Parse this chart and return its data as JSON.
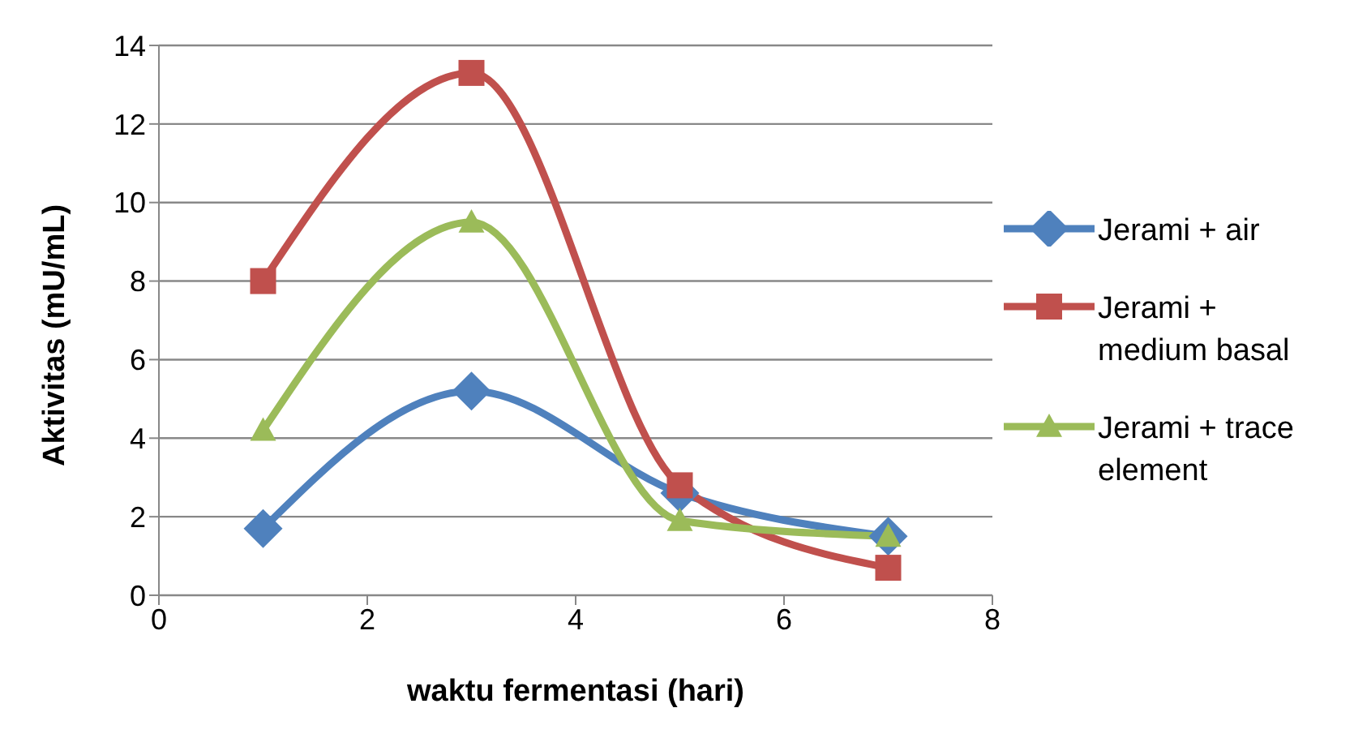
{
  "chart_data": {
    "type": "line",
    "xlabel": "waktu fermentasi (hari)",
    "ylabel": "Aktivitas (mU/mL)",
    "x": [
      1,
      3,
      5,
      7
    ],
    "series": [
      {
        "name": "Jerami + air",
        "color": "#4f81bd",
        "marker": "diamond",
        "values": [
          1.7,
          5.2,
          2.6,
          1.5
        ]
      },
      {
        "name": "Jerami + medium basal",
        "color": "#c0504d",
        "marker": "square",
        "values": [
          8.0,
          13.3,
          2.8,
          0.7
        ]
      },
      {
        "name": "Jerami + trace element",
        "color": "#9bbb59",
        "marker": "triangle",
        "values": [
          4.2,
          9.5,
          1.9,
          1.5
        ]
      }
    ],
    "xlim": [
      0,
      8
    ],
    "xticks": [
      0,
      2,
      4,
      6,
      8
    ],
    "ylim": [
      0,
      14
    ],
    "yticks": [
      0,
      2,
      4,
      6,
      8,
      10,
      12,
      14
    ],
    "grid": "y",
    "legend": "right"
  }
}
